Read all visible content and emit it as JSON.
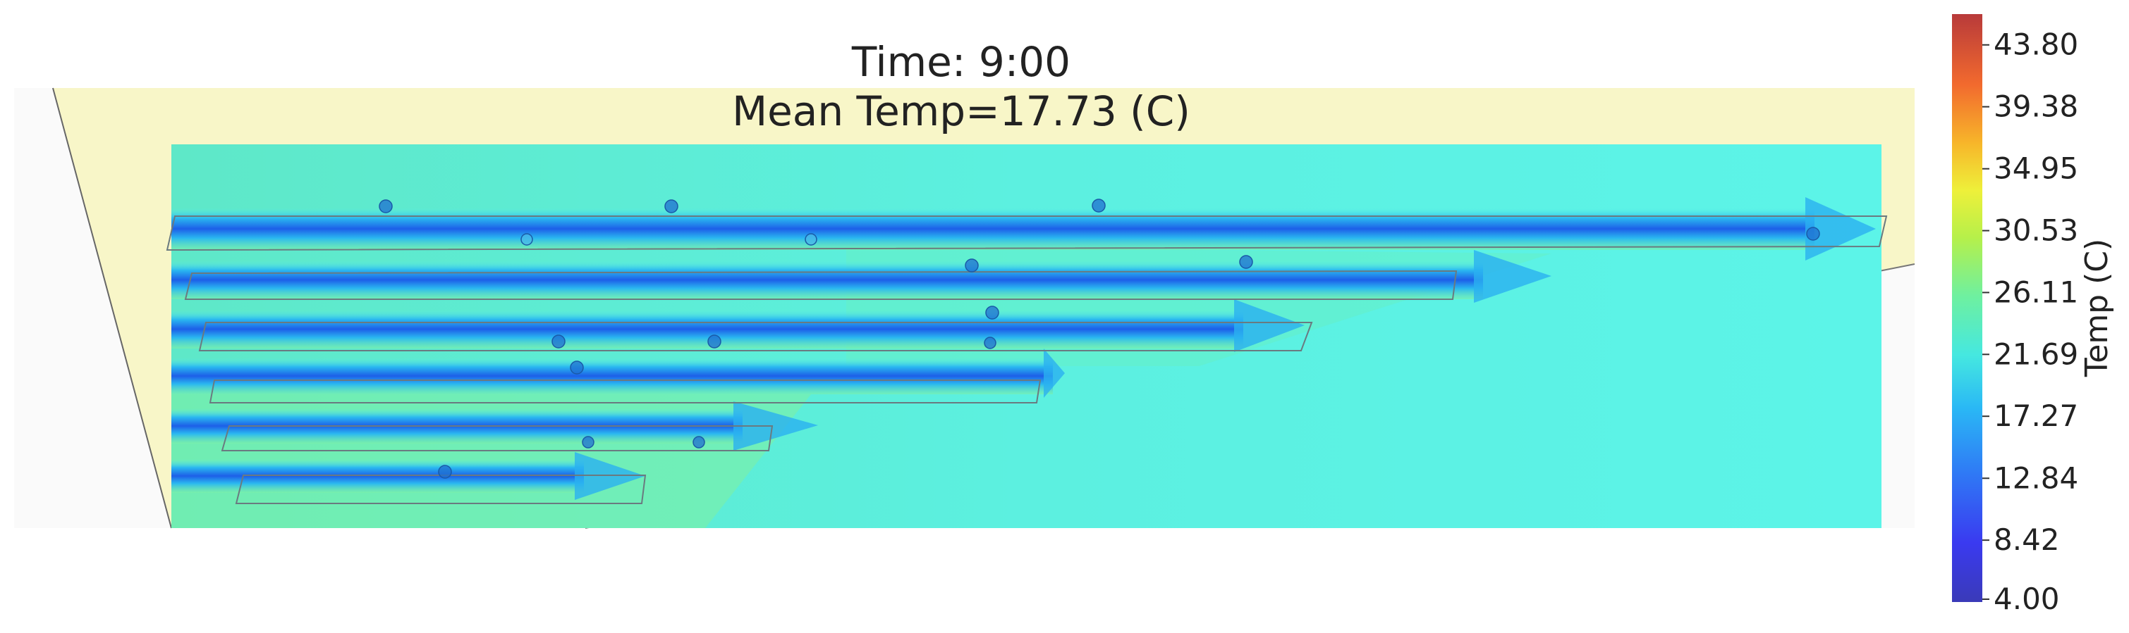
{
  "header": {
    "time_text": "Time: 9:00",
    "mean_temp_text": "Mean Temp=17.73 (C)"
  },
  "colorbar": {
    "label": "Temp (C)",
    "min": 4.0,
    "max": 46.0,
    "ticks": [
      "43.80",
      "39.38",
      "34.95",
      "30.53",
      "26.11",
      "21.69",
      "17.27",
      "12.84",
      "8.42",
      "4.00"
    ],
    "tick_values": [
      43.8,
      39.38,
      34.95,
      30.53,
      26.11,
      21.69,
      17.27,
      12.84,
      8.42,
      4.0
    ],
    "colors": [
      "#3a3ae0",
      "#2f6df0",
      "#1fa6f0",
      "#3cd6e8",
      "#54f0d2",
      "#8ef07a",
      "#d4f23a",
      "#f7c62a",
      "#f58a2a",
      "#e84a30",
      "#b83a3a"
    ]
  },
  "colors": {
    "building_fill": "#f8f6c8",
    "ambient": "#5cf0e4",
    "cold_core": "#1f6ff0"
  }
}
